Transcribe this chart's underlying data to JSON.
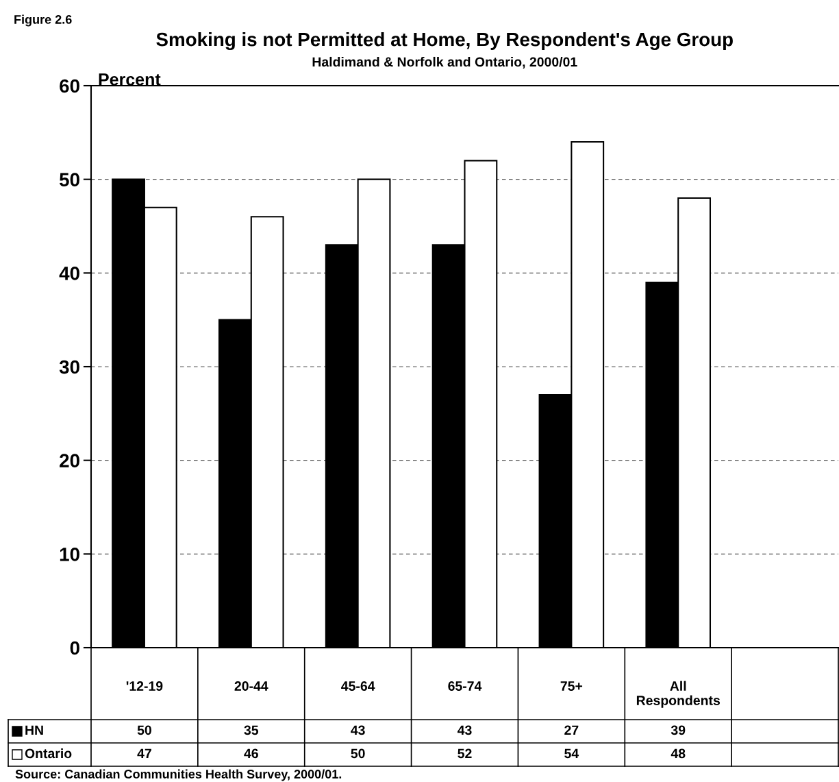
{
  "chart_data": {
    "type": "bar",
    "title": "Smoking is not Permitted at Home, By Respondent's Age Group",
    "subtitle": "Haldimand & Norfolk and Ontario, 2000/01",
    "ylabel": "Percent",
    "annotations": [
      "Figure 2.6",
      "Source: Canadian Communities Health Survey, 2000/01."
    ],
    "categories": [
      "'12-19",
      "20-44",
      "45-64",
      "65-74",
      "75+",
      "All\nRespondents",
      null
    ],
    "series": [
      {
        "name": "HN",
        "color": "#000000",
        "values": [
          50,
          35,
          43,
          43,
          27,
          39,
          null
        ]
      },
      {
        "name": "Ontario",
        "color": "#ffffff",
        "values": [
          47,
          46,
          50,
          52,
          54,
          48,
          null
        ]
      }
    ],
    "ylim": [
      0,
      60
    ],
    "yticks": [
      0,
      10,
      20,
      30,
      40,
      50,
      60
    ],
    "grid": "y",
    "data_labels": true,
    "legend": "bottom"
  }
}
